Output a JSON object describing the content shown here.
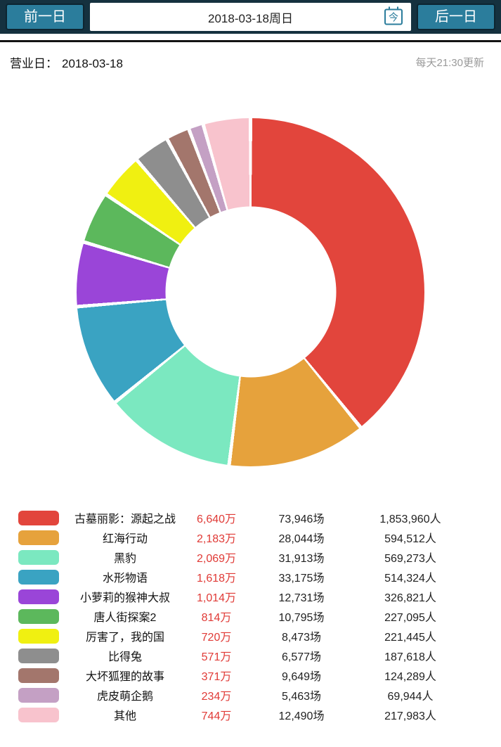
{
  "topbar": {
    "prev_label": "前一日",
    "date_label": "2018-03-18周日",
    "today_icon_label": "今",
    "next_label": "后一日"
  },
  "header": {
    "business_day_label": "营业日：",
    "business_day_value": "2018-03-18",
    "update_note": "每天21:30更新"
  },
  "colors": {
    "topbar_bg": "#15313f",
    "button_bg": "#2b7d9c",
    "revenue_text": "#e03a36",
    "update_text": "#9a9a9a"
  },
  "chart_data": {
    "type": "pie",
    "donut": true,
    "start_angle_deg": 0,
    "direction": "clockwise",
    "legend_position": "bottom",
    "value_unit": "万 (box office revenue)",
    "series": [
      {
        "name": "古墓丽影：源起之战",
        "revenue_label": "6,640万",
        "revenue_value": 6640,
        "sessions_label": "73,946场",
        "admissions_label": "1,853,960人",
        "color": "#e2453c"
      },
      {
        "name": "红海行动",
        "revenue_label": "2,183万",
        "revenue_value": 2183,
        "sessions_label": "28,044场",
        "admissions_label": "594,512人",
        "color": "#e6a23c"
      },
      {
        "name": "黑豹",
        "revenue_label": "2,069万",
        "revenue_value": 2069,
        "sessions_label": "31,913场",
        "admissions_label": "569,273人",
        "color": "#7be8c0"
      },
      {
        "name": "水形物语",
        "revenue_label": "1,618万",
        "revenue_value": 1618,
        "sessions_label": "33,175场",
        "admissions_label": "514,324人",
        "color": "#3aa3c2"
      },
      {
        "name": "小萝莉的猴神大叔",
        "revenue_label": "1,014万",
        "revenue_value": 1014,
        "sessions_label": "12,731场",
        "admissions_label": "326,821人",
        "color": "#9a45d8"
      },
      {
        "name": "唐人街探案2",
        "revenue_label": "814万",
        "revenue_value": 814,
        "sessions_label": "10,795场",
        "admissions_label": "227,095人",
        "color": "#5cb85c"
      },
      {
        "name": "厉害了，我的国",
        "revenue_label": "720万",
        "revenue_value": 720,
        "sessions_label": "8,473场",
        "admissions_label": "221,445人",
        "color": "#f0f011"
      },
      {
        "name": "比得兔",
        "revenue_label": "571万",
        "revenue_value": 571,
        "sessions_label": "6,577场",
        "admissions_label": "187,618人",
        "color": "#8e8e8e"
      },
      {
        "name": "大坏狐狸的故事",
        "revenue_label": "371万",
        "revenue_value": 371,
        "sessions_label": "9,649场",
        "admissions_label": "124,289人",
        "color": "#a3766c"
      },
      {
        "name": "虎皮萌企鹅",
        "revenue_label": "234万",
        "revenue_value": 234,
        "sessions_label": "5,463场",
        "admissions_label": "69,944人",
        "color": "#c4a0c4"
      },
      {
        "name": "其他",
        "revenue_label": "744万",
        "revenue_value": 744,
        "sessions_label": "12,490场",
        "admissions_label": "217,983人",
        "color": "#f8c3cd"
      }
    ]
  }
}
